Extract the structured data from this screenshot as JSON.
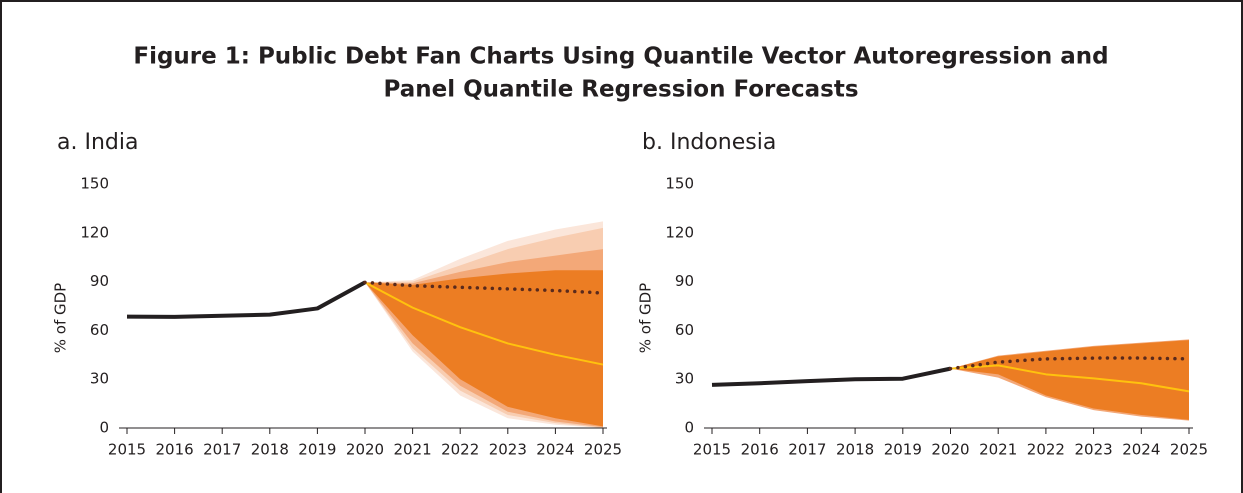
{
  "title": [
    "Figure 1: Public Debt Fan Charts Using Quantile Vector Autoregression and",
    "Panel Quantile Regression Forecasts"
  ],
  "chart_data": [
    {
      "type": "fan",
      "subtitle": "a. India",
      "y_label": "% of GDP",
      "x": [
        2015,
        2016,
        2017,
        2018,
        2019,
        2020,
        2021,
        2022,
        2023,
        2024,
        2025
      ],
      "xlim": [
        2015,
        2025
      ],
      "xticks": [
        2015,
        2016,
        2017,
        2018,
        2019,
        2020,
        2021,
        2022,
        2023,
        2024,
        2025
      ],
      "ylim": [
        0,
        150
      ],
      "yticks": [
        0,
        30,
        60,
        90,
        120,
        150
      ],
      "bands": [
        {
          "color": "#fbe6da",
          "lower": [
            null,
            null,
            null,
            null,
            null,
            89.5,
            47,
            20,
            6,
            2,
            0
          ],
          "upper": [
            null,
            null,
            null,
            null,
            null,
            89.5,
            91,
            104,
            115,
            122,
            127
          ]
        },
        {
          "color": "#f8cdb1",
          "lower": [
            null,
            null,
            null,
            null,
            null,
            89.5,
            49,
            23,
            8,
            3,
            0
          ],
          "upper": [
            null,
            null,
            null,
            null,
            null,
            89.5,
            90,
            100,
            110,
            117,
            123
          ]
        },
        {
          "color": "#f3a878",
          "lower": [
            null,
            null,
            null,
            null,
            null,
            89.5,
            52,
            26,
            10,
            4,
            0.5
          ],
          "upper": [
            null,
            null,
            null,
            null,
            null,
            89.5,
            89,
            96,
            102,
            106,
            110
          ]
        },
        {
          "color": "#ec7d23",
          "lower": [
            null,
            null,
            null,
            null,
            null,
            89.5,
            57,
            30,
            13,
            6,
            1
          ],
          "upper": [
            null,
            null,
            null,
            null,
            null,
            89.5,
            88,
            92,
            95,
            97,
            97
          ]
        }
      ],
      "series": [
        {
          "color": "#231f20",
          "style": "solid",
          "width": 4,
          "values": [
            68.5,
            68.3,
            69,
            69.7,
            73.5,
            89.5,
            null,
            null,
            null,
            null,
            null
          ]
        },
        {
          "color": "#ffc20e",
          "style": "solid",
          "width": 2,
          "values": [
            null,
            null,
            null,
            null,
            null,
            89.5,
            74,
            62,
            52,
            45,
            39
          ]
        },
        {
          "color": "#5a2a1c",
          "style": "dotted",
          "width": 3.5,
          "values": [
            null,
            null,
            null,
            null,
            null,
            89.5,
            87.5,
            86.5,
            85.5,
            84.5,
            83
          ]
        }
      ]
    },
    {
      "type": "fan",
      "subtitle": "b. Indonesia",
      "y_label": "% of GDP",
      "x": [
        2015,
        2016,
        2017,
        2018,
        2019,
        2020,
        2021,
        2022,
        2023,
        2024,
        2025
      ],
      "xlim": [
        2015,
        2025
      ],
      "xticks": [
        2015,
        2016,
        2017,
        2018,
        2019,
        2020,
        2021,
        2022,
        2023,
        2024,
        2025
      ],
      "ylim": [
        0,
        150
      ],
      "yticks": [
        0,
        30,
        60,
        90,
        120,
        150
      ],
      "bands": [
        {
          "color": "#f3a878",
          "lower": [
            null,
            null,
            null,
            null,
            null,
            36.5,
            31,
            19,
            11,
            7,
            4.5
          ],
          "upper": [
            null,
            null,
            null,
            null,
            null,
            36.5,
            44.5,
            47.5,
            50.5,
            52.5,
            54.5
          ]
        },
        {
          "color": "#ec7d23",
          "lower": [
            null,
            null,
            null,
            null,
            null,
            36.5,
            33,
            20,
            12,
            8,
            5
          ],
          "upper": [
            null,
            null,
            null,
            null,
            null,
            36.5,
            44,
            47,
            50,
            52,
            54
          ]
        }
      ],
      "series": [
        {
          "color": "#231f20",
          "style": "solid",
          "width": 4,
          "values": [
            26.5,
            27.5,
            28.8,
            30,
            30.3,
            36.5,
            null,
            null,
            null,
            null,
            null
          ]
        },
        {
          "color": "#ffc20e",
          "style": "solid",
          "width": 2,
          "values": [
            null,
            null,
            null,
            null,
            null,
            36.5,
            38.5,
            33,
            30.5,
            27.5,
            22.5
          ]
        },
        {
          "color": "#5a2a1c",
          "style": "dotted",
          "width": 3.5,
          "values": [
            null,
            null,
            null,
            null,
            null,
            36.5,
            40.5,
            42.5,
            43,
            43,
            42.5
          ]
        }
      ]
    }
  ]
}
